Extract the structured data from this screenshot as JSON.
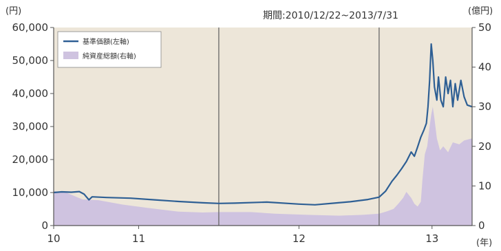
{
  "chart_data": {
    "type": "line",
    "period_label": "期間:2010/12/22~2013/7/31",
    "y_left_unit": "(円)",
    "y_right_unit": "(億円)",
    "x_unit": "(年)",
    "y_left_ticks": [
      "0",
      "10,000",
      "20,000",
      "30,000",
      "40,000",
      "50,000",
      "60,000"
    ],
    "y_right_ticks": [
      "0",
      "10",
      "20",
      "30",
      "40",
      "50"
    ],
    "x_ticks": [
      {
        "label": "10",
        "t": 2010.97
      },
      {
        "label": "11",
        "t": 2011.5
      },
      {
        "label": "12",
        "t": 2012.5
      },
      {
        "label": "13",
        "t": 2013.33
      }
    ],
    "y_left_range": [
      0,
      60000
    ],
    "y_right_range": [
      0,
      50
    ],
    "x_range": [
      2010.97,
      2013.58
    ],
    "year_boundaries": [
      2012.0,
      2013.0
    ],
    "colors": {
      "plot_bg": "#ede6d9",
      "line": "#2e5f94",
      "area": "#cfc3e0",
      "divider": "#666666"
    },
    "series": [
      {
        "name": "基準価額(左軸)",
        "axis": "left",
        "kind": "line",
        "points": [
          [
            2010.97,
            10000
          ],
          [
            2011.02,
            10200
          ],
          [
            2011.08,
            10100
          ],
          [
            2011.13,
            10300
          ],
          [
            2011.16,
            9500
          ],
          [
            2011.19,
            7800
          ],
          [
            2011.21,
            8700
          ],
          [
            2011.3,
            8500
          ],
          [
            2011.45,
            8300
          ],
          [
            2011.6,
            7800
          ],
          [
            2011.75,
            7300
          ],
          [
            2011.9,
            6900
          ],
          [
            2012.0,
            6700
          ],
          [
            2012.1,
            6800
          ],
          [
            2012.3,
            7100
          ],
          [
            2012.5,
            6500
          ],
          [
            2012.6,
            6300
          ],
          [
            2012.72,
            6800
          ],
          [
            2012.82,
            7200
          ],
          [
            2012.93,
            7900
          ],
          [
            2013.0,
            8600
          ],
          [
            2013.04,
            10400
          ],
          [
            2013.08,
            13400
          ],
          [
            2013.11,
            15200
          ],
          [
            2013.14,
            17200
          ],
          [
            2013.17,
            19400
          ],
          [
            2013.2,
            22300
          ],
          [
            2013.22,
            21000
          ],
          [
            2013.24,
            23800
          ],
          [
            2013.26,
            26800
          ],
          [
            2013.28,
            29000
          ],
          [
            2013.295,
            31000
          ],
          [
            2013.305,
            36000
          ],
          [
            2013.315,
            44000
          ],
          [
            2013.325,
            55000
          ],
          [
            2013.335,
            50000
          ],
          [
            2013.345,
            42000
          ],
          [
            2013.36,
            38000
          ],
          [
            2013.37,
            45000
          ],
          [
            2013.385,
            38000
          ],
          [
            2013.4,
            36000
          ],
          [
            2013.415,
            45000
          ],
          [
            2013.43,
            40000
          ],
          [
            2013.445,
            44000
          ],
          [
            2013.46,
            36000
          ],
          [
            2013.475,
            43000
          ],
          [
            2013.49,
            38000
          ],
          [
            2013.51,
            44000
          ],
          [
            2013.53,
            39000
          ],
          [
            2013.55,
            36500
          ],
          [
            2013.58,
            36000
          ]
        ]
      },
      {
        "name": "純資産総額(右軸)",
        "axis": "right",
        "kind": "area",
        "points": [
          [
            2010.97,
            8.7
          ],
          [
            2011.05,
            8.3
          ],
          [
            2011.15,
            6.6
          ],
          [
            2011.25,
            6.4
          ],
          [
            2011.4,
            5.3
          ],
          [
            2011.55,
            4.5
          ],
          [
            2011.75,
            3.5
          ],
          [
            2011.9,
            3.3
          ],
          [
            2012.0,
            3.4
          ],
          [
            2012.2,
            3.4
          ],
          [
            2012.35,
            3.0
          ],
          [
            2012.55,
            2.7
          ],
          [
            2012.75,
            2.5
          ],
          [
            2012.9,
            2.7
          ],
          [
            2013.0,
            3.0
          ],
          [
            2013.05,
            3.6
          ],
          [
            2013.09,
            4.2
          ],
          [
            2013.12,
            5.5
          ],
          [
            2013.15,
            7.0
          ],
          [
            2013.17,
            8.5
          ],
          [
            2013.2,
            7.0
          ],
          [
            2013.22,
            5.5
          ],
          [
            2013.24,
            4.8
          ],
          [
            2013.26,
            6.0
          ],
          [
            2013.27,
            11.5
          ],
          [
            2013.285,
            18.0
          ],
          [
            2013.3,
            20.0
          ],
          [
            2013.315,
            25.0
          ],
          [
            2013.325,
            28.0
          ],
          [
            2013.335,
            30.0
          ],
          [
            2013.345,
            27.0
          ],
          [
            2013.36,
            22.0
          ],
          [
            2013.38,
            19.0
          ],
          [
            2013.4,
            20.0
          ],
          [
            2013.43,
            18.5
          ],
          [
            2013.46,
            21.0
          ],
          [
            2013.5,
            20.5
          ],
          [
            2013.53,
            21.5
          ],
          [
            2013.58,
            22.0
          ]
        ]
      }
    ]
  }
}
